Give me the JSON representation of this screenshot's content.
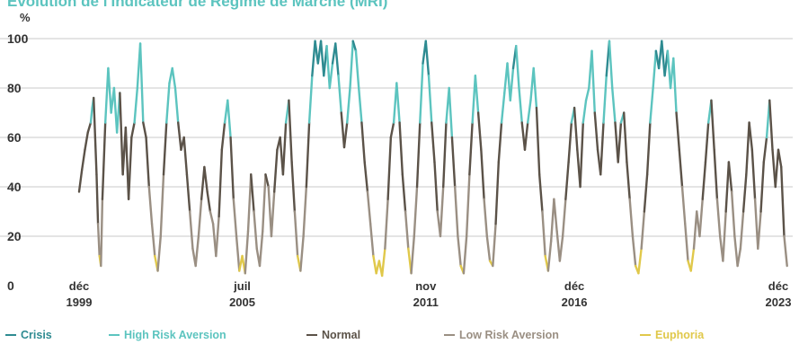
{
  "chart_data": {
    "type": "line",
    "title": "Évolution de l'Indicateur de Régime de Marché (MRI)",
    "ylabel": "%",
    "xlabel": "",
    "ylim": [
      0,
      100
    ],
    "yticks": [
      0,
      20,
      40,
      60,
      80,
      100
    ],
    "xticks": [
      {
        "x": 1999.9,
        "line1": "déc",
        "line2": "1999"
      },
      {
        "x": 2005.5,
        "line1": "juil",
        "line2": "2005"
      },
      {
        "x": 2011.8,
        "line1": "nov",
        "line2": "2011"
      },
      {
        "x": 2016.9,
        "line1": "déc",
        "line2": "2016"
      },
      {
        "x": 2023.9,
        "line1": "déc",
        "line2": "2023"
      }
    ],
    "xlim": [
      1999.9,
      2023.9
    ],
    "grid": true,
    "legend_position": "bottom",
    "regimes": [
      {
        "name": "Crisis",
        "min": 90,
        "max": 100,
        "color": "#2e8b91"
      },
      {
        "name": "High Risk Aversion",
        "min": 66,
        "max": 90,
        "color": "#5cc4bf"
      },
      {
        "name": "Normal",
        "min": 34,
        "max": 66,
        "color": "#5b5248"
      },
      {
        "name": "Low Risk Aversion",
        "min": 11,
        "max": 34,
        "color": "#9a8f83"
      },
      {
        "name": "Euphoria",
        "min": 0,
        "max": 11,
        "color": "#e0c84a"
      }
    ],
    "series": [
      {
        "values": [
          [
            1999.9,
            38
          ],
          [
            2000.0,
            47
          ],
          [
            2000.1,
            55
          ],
          [
            2000.2,
            62
          ],
          [
            2000.3,
            66
          ],
          [
            2000.35,
            72
          ],
          [
            2000.4,
            76
          ],
          [
            2000.5,
            45
          ],
          [
            2000.55,
            25
          ],
          [
            2000.6,
            12
          ],
          [
            2000.65,
            8
          ],
          [
            2000.7,
            35
          ],
          [
            2000.8,
            66
          ],
          [
            2000.9,
            88
          ],
          [
            2001.0,
            70
          ],
          [
            2001.1,
            80
          ],
          [
            2001.2,
            62
          ],
          [
            2001.3,
            78
          ],
          [
            2001.4,
            45
          ],
          [
            2001.5,
            64
          ],
          [
            2001.6,
            35
          ],
          [
            2001.7,
            60
          ],
          [
            2001.8,
            66
          ],
          [
            2001.9,
            80
          ],
          [
            2002.0,
            98
          ],
          [
            2002.1,
            66
          ],
          [
            2002.2,
            60
          ],
          [
            2002.3,
            40
          ],
          [
            2002.4,
            25
          ],
          [
            2002.5,
            12
          ],
          [
            2002.6,
            6
          ],
          [
            2002.7,
            20
          ],
          [
            2002.8,
            45
          ],
          [
            2002.9,
            66
          ],
          [
            2003.0,
            82
          ],
          [
            2003.1,
            88
          ],
          [
            2003.2,
            80
          ],
          [
            2003.3,
            66
          ],
          [
            2003.4,
            55
          ],
          [
            2003.5,
            60
          ],
          [
            2003.6,
            45
          ],
          [
            2003.7,
            30
          ],
          [
            2003.8,
            15
          ],
          [
            2003.9,
            8
          ],
          [
            2004.0,
            20
          ],
          [
            2004.1,
            35
          ],
          [
            2004.2,
            48
          ],
          [
            2004.3,
            38
          ],
          [
            2004.4,
            30
          ],
          [
            2004.5,
            25
          ],
          [
            2004.6,
            12
          ],
          [
            2004.7,
            28
          ],
          [
            2004.8,
            55
          ],
          [
            2004.9,
            66
          ],
          [
            2005.0,
            75
          ],
          [
            2005.1,
            60
          ],
          [
            2005.2,
            35
          ],
          [
            2005.3,
            20
          ],
          [
            2005.4,
            6
          ],
          [
            2005.5,
            12
          ],
          [
            2005.6,
            5
          ],
          [
            2005.7,
            22
          ],
          [
            2005.8,
            45
          ],
          [
            2005.9,
            30
          ],
          [
            2006.0,
            15
          ],
          [
            2006.1,
            8
          ],
          [
            2006.2,
            22
          ],
          [
            2006.3,
            45
          ],
          [
            2006.4,
            40
          ],
          [
            2006.5,
            20
          ],
          [
            2006.6,
            38
          ],
          [
            2006.7,
            55
          ],
          [
            2006.8,
            60
          ],
          [
            2006.9,
            45
          ],
          [
            2007.0,
            66
          ],
          [
            2007.1,
            75
          ],
          [
            2007.2,
            50
          ],
          [
            2007.3,
            30
          ],
          [
            2007.4,
            12
          ],
          [
            2007.5,
            6
          ],
          [
            2007.6,
            20
          ],
          [
            2007.7,
            40
          ],
          [
            2007.8,
            66
          ],
          [
            2007.9,
            85
          ],
          [
            2008.0,
            99
          ],
          [
            2008.1,
            90
          ],
          [
            2008.2,
            99
          ],
          [
            2008.3,
            85
          ],
          [
            2008.4,
            97
          ],
          [
            2008.5,
            80
          ],
          [
            2008.6,
            90
          ],
          [
            2008.7,
            98
          ],
          [
            2008.8,
            85
          ],
          [
            2008.9,
            70
          ],
          [
            2009.0,
            56
          ],
          [
            2009.1,
            66
          ],
          [
            2009.2,
            80
          ],
          [
            2009.3,
            99
          ],
          [
            2009.4,
            95
          ],
          [
            2009.5,
            80
          ],
          [
            2009.6,
            66
          ],
          [
            2009.7,
            50
          ],
          [
            2009.8,
            38
          ],
          [
            2009.9,
            25
          ],
          [
            2010.0,
            12
          ],
          [
            2010.1,
            5
          ],
          [
            2010.2,
            10
          ],
          [
            2010.3,
            4
          ],
          [
            2010.4,
            15
          ],
          [
            2010.5,
            35
          ],
          [
            2010.6,
            60
          ],
          [
            2010.7,
            66
          ],
          [
            2010.8,
            82
          ],
          [
            2010.9,
            66
          ],
          [
            2011.0,
            45
          ],
          [
            2011.1,
            30
          ],
          [
            2011.2,
            15
          ],
          [
            2011.3,
            5
          ],
          [
            2011.4,
            20
          ],
          [
            2011.5,
            40
          ],
          [
            2011.6,
            66
          ],
          [
            2011.7,
            90
          ],
          [
            2011.8,
            99
          ],
          [
            2011.9,
            85
          ],
          [
            2012.0,
            66
          ],
          [
            2012.1,
            50
          ],
          [
            2012.2,
            30
          ],
          [
            2012.3,
            20
          ],
          [
            2012.4,
            40
          ],
          [
            2012.5,
            66
          ],
          [
            2012.6,
            80
          ],
          [
            2012.7,
            60
          ],
          [
            2012.8,
            40
          ],
          [
            2012.9,
            20
          ],
          [
            2013.0,
            8
          ],
          [
            2013.1,
            5
          ],
          [
            2013.2,
            20
          ],
          [
            2013.3,
            45
          ],
          [
            2013.4,
            66
          ],
          [
            2013.5,
            85
          ],
          [
            2013.6,
            70
          ],
          [
            2013.7,
            55
          ],
          [
            2013.8,
            35
          ],
          [
            2013.9,
            20
          ],
          [
            2014.0,
            10
          ],
          [
            2014.1,
            8
          ],
          [
            2014.2,
            25
          ],
          [
            2014.3,
            50
          ],
          [
            2014.4,
            66
          ],
          [
            2014.5,
            78
          ],
          [
            2014.6,
            90
          ],
          [
            2014.7,
            75
          ],
          [
            2014.8,
            88
          ],
          [
            2014.9,
            97
          ],
          [
            2015.0,
            80
          ],
          [
            2015.1,
            66
          ],
          [
            2015.2,
            55
          ],
          [
            2015.3,
            66
          ],
          [
            2015.4,
            75
          ],
          [
            2015.5,
            88
          ],
          [
            2015.6,
            72
          ],
          [
            2015.7,
            45
          ],
          [
            2015.8,
            30
          ],
          [
            2015.9,
            12
          ],
          [
            2016.0,
            6
          ],
          [
            2016.1,
            18
          ],
          [
            2016.2,
            35
          ],
          [
            2016.3,
            22
          ],
          [
            2016.4,
            10
          ],
          [
            2016.5,
            20
          ],
          [
            2016.6,
            35
          ],
          [
            2016.7,
            50
          ],
          [
            2016.8,
            66
          ],
          [
            2016.9,
            72
          ],
          [
            2017.0,
            55
          ],
          [
            2017.1,
            40
          ],
          [
            2017.2,
            66
          ],
          [
            2017.3,
            75
          ],
          [
            2017.4,
            80
          ],
          [
            2017.5,
            95
          ],
          [
            2017.6,
            70
          ],
          [
            2017.7,
            55
          ],
          [
            2017.8,
            45
          ],
          [
            2017.9,
            66
          ],
          [
            2018.0,
            85
          ],
          [
            2018.1,
            99
          ],
          [
            2018.2,
            80
          ],
          [
            2018.3,
            66
          ],
          [
            2018.4,
            50
          ],
          [
            2018.5,
            66
          ],
          [
            2018.6,
            70
          ],
          [
            2018.7,
            50
          ],
          [
            2018.8,
            35
          ],
          [
            2018.9,
            20
          ],
          [
            2019.0,
            8
          ],
          [
            2019.1,
            5
          ],
          [
            2019.2,
            15
          ],
          [
            2019.3,
            30
          ],
          [
            2019.4,
            45
          ],
          [
            2019.5,
            66
          ],
          [
            2019.6,
            80
          ],
          [
            2019.7,
            95
          ],
          [
            2019.8,
            88
          ],
          [
            2019.9,
            99
          ],
          [
            2020.0,
            85
          ],
          [
            2020.1,
            95
          ],
          [
            2020.2,
            80
          ],
          [
            2020.3,
            92
          ],
          [
            2020.4,
            70
          ],
          [
            2020.5,
            55
          ],
          [
            2020.6,
            40
          ],
          [
            2020.7,
            25
          ],
          [
            2020.8,
            10
          ],
          [
            2020.9,
            6
          ],
          [
            2021.0,
            15
          ],
          [
            2021.1,
            30
          ],
          [
            2021.2,
            20
          ],
          [
            2021.3,
            35
          ],
          [
            2021.4,
            50
          ],
          [
            2021.5,
            66
          ],
          [
            2021.6,
            75
          ],
          [
            2021.7,
            55
          ],
          [
            2021.8,
            35
          ],
          [
            2021.9,
            20
          ],
          [
            2022.0,
            10
          ],
          [
            2022.1,
            30
          ],
          [
            2022.2,
            50
          ],
          [
            2022.3,
            38
          ],
          [
            2022.4,
            20
          ],
          [
            2022.5,
            8
          ],
          [
            2022.6,
            15
          ],
          [
            2022.7,
            30
          ],
          [
            2022.8,
            45
          ],
          [
            2022.9,
            66
          ],
          [
            2023.0,
            55
          ],
          [
            2023.1,
            35
          ],
          [
            2023.2,
            15
          ],
          [
            2023.3,
            30
          ],
          [
            2023.4,
            50
          ],
          [
            2023.5,
            60
          ],
          [
            2023.6,
            75
          ],
          [
            2023.7,
            55
          ],
          [
            2023.8,
            40
          ],
          [
            2023.9,
            55
          ],
          [
            2024.0,
            48
          ],
          [
            2024.1,
            20
          ],
          [
            2024.2,
            8
          ]
        ]
      }
    ]
  }
}
